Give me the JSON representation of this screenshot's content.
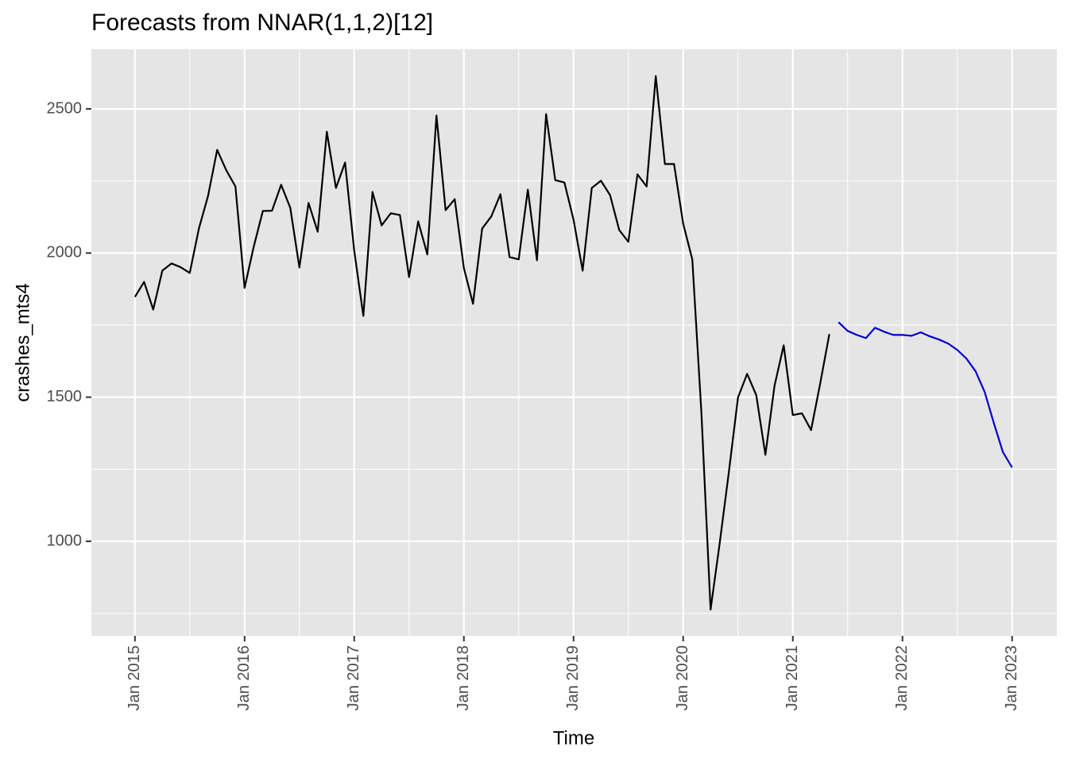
{
  "chart_data": {
    "type": "line",
    "title": "Forecasts from NNAR(1,1,2)[12]",
    "x_label": "Time",
    "y_label": "crashes_mts4",
    "x": [
      "2015-01",
      "2015-02",
      "2015-03",
      "2015-04",
      "2015-05",
      "2015-06",
      "2015-07",
      "2015-08",
      "2015-09",
      "2015-10",
      "2015-11",
      "2015-12",
      "2016-01",
      "2016-02",
      "2016-03",
      "2016-04",
      "2016-05",
      "2016-06",
      "2016-07",
      "2016-08",
      "2016-09",
      "2016-10",
      "2016-11",
      "2016-12",
      "2017-01",
      "2017-02",
      "2017-03",
      "2017-04",
      "2017-05",
      "2017-06",
      "2017-07",
      "2017-08",
      "2017-09",
      "2017-10",
      "2017-11",
      "2017-12",
      "2018-01",
      "2018-02",
      "2018-03",
      "2018-04",
      "2018-05",
      "2018-06",
      "2018-07",
      "2018-08",
      "2018-09",
      "2018-10",
      "2018-11",
      "2018-12",
      "2019-01",
      "2019-02",
      "2019-03",
      "2019-04",
      "2019-05",
      "2019-06",
      "2019-07",
      "2019-08",
      "2019-09",
      "2019-10",
      "2019-11",
      "2019-12",
      "2020-01",
      "2020-02",
      "2020-03",
      "2020-04",
      "2020-05",
      "2020-06",
      "2020-07",
      "2020-08",
      "2020-09",
      "2020-10",
      "2020-11",
      "2020-12",
      "2021-01",
      "2021-02",
      "2021-03",
      "2021-04",
      "2021-05",
      "2021-06",
      "2021-07",
      "2021-08",
      "2021-09",
      "2021-10",
      "2021-11",
      "2021-12",
      "2022-01",
      "2022-02",
      "2022-03",
      "2022-04",
      "2022-05",
      "2022-06",
      "2022-07",
      "2022-08",
      "2022-09",
      "2022-10",
      "2022-11",
      "2022-12",
      "2023-01"
    ],
    "series": [
      {
        "color": "#000000",
        "values": [
          1848,
          1900,
          1804,
          1939,
          1964,
          1951,
          1931,
          2085,
          2198,
          2358,
          2287,
          2231,
          1879,
          2022,
          2146,
          2147,
          2237,
          2157,
          1950,
          2174,
          2074,
          2421,
          2226,
          2314,
          2008,
          1782,
          2212,
          2096,
          2138,
          2132,
          1917,
          2110,
          1995,
          2477,
          2149,
          2187,
          1948,
          1824,
          2085,
          2127,
          2204,
          1986,
          1978,
          2220,
          1975,
          2482,
          2253,
          2245,
          2116,
          1939,
          2226,
          2251,
          2201,
          2080,
          2039,
          2273,
          2231,
          2614,
          2309,
          2309,
          2102,
          1978,
          1444,
          763,
          994,
          1240,
          1499,
          1581,
          1507,
          1300,
          1540,
          1680,
          1438,
          1444,
          1386,
          1548,
          1719,
          null,
          null,
          null,
          null,
          null,
          null,
          null,
          null,
          null,
          null,
          null,
          null,
          null,
          null,
          null,
          null,
          null,
          null,
          null,
          null
        ]
      },
      {
        "color": "#0000cc",
        "values": [
          null,
          null,
          null,
          null,
          null,
          null,
          null,
          null,
          null,
          null,
          null,
          null,
          null,
          null,
          null,
          null,
          null,
          null,
          null,
          null,
          null,
          null,
          null,
          null,
          null,
          null,
          null,
          null,
          null,
          null,
          null,
          null,
          null,
          null,
          null,
          null,
          null,
          null,
          null,
          null,
          null,
          null,
          null,
          null,
          null,
          null,
          null,
          null,
          null,
          null,
          null,
          null,
          null,
          null,
          null,
          null,
          null,
          null,
          null,
          null,
          null,
          null,
          null,
          null,
          null,
          null,
          null,
          null,
          null,
          null,
          null,
          null,
          null,
          null,
          null,
          null,
          null,
          1760,
          1730,
          1716,
          1705,
          1741,
          1727,
          1716,
          1716,
          1713,
          1725,
          1711,
          1700,
          1686,
          1664,
          1634,
          1590,
          1518,
          1410,
          1309,
          1256
        ]
      }
    ],
    "xlim": [
      "2014-08-08",
      "2023-05-28"
    ],
    "xticks": [
      {
        "value": "2015-01",
        "label": "Jan 2015"
      },
      {
        "value": "2016-01",
        "label": "Jan 2016"
      },
      {
        "value": "2017-01",
        "label": "Jan 2017"
      },
      {
        "value": "2018-01",
        "label": "Jan 2018"
      },
      {
        "value": "2019-01",
        "label": "Jan 2019"
      },
      {
        "value": "2020-01",
        "label": "Jan 2020"
      },
      {
        "value": "2021-01",
        "label": "Jan 2021"
      },
      {
        "value": "2022-01",
        "label": "Jan 2022"
      },
      {
        "value": "2023-01",
        "label": "Jan 2023"
      }
    ],
    "ylim": [
      672,
      2707
    ],
    "yticks": [
      1000,
      1500,
      2000,
      2500
    ],
    "grid": true,
    "panel_color": "#e5e5e5"
  }
}
